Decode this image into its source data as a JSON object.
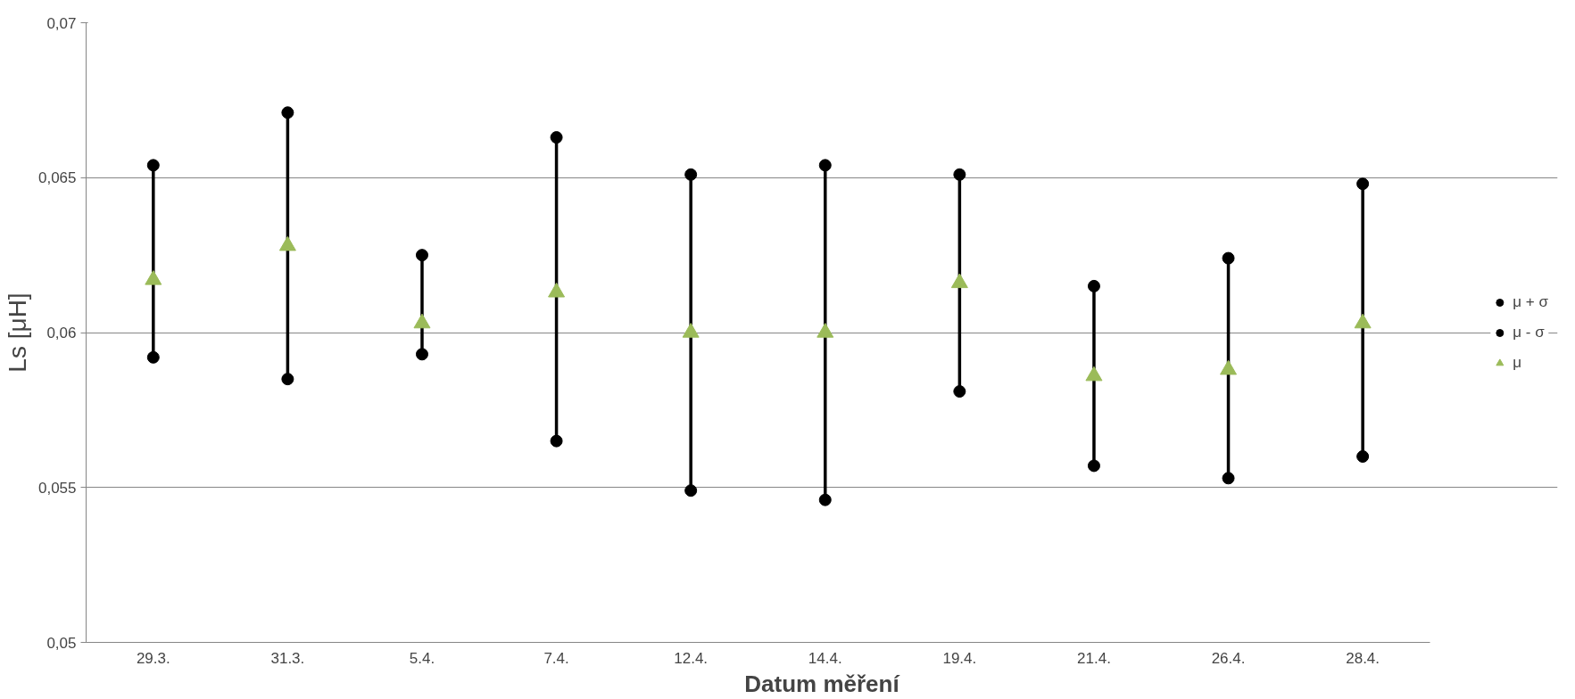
{
  "chart_data": {
    "type": "scatter",
    "xlabel": "Datum měření",
    "ylabel": "Ls [μH]",
    "categories": [
      "29.3.",
      "31.3.",
      "5.4.",
      "7.4.",
      "12.4.",
      "14.4.",
      "19.4.",
      "21.4.",
      "26.4.",
      "28.4."
    ],
    "series": [
      {
        "name": "μ + σ",
        "color": "#000000",
        "marker": "circle",
        "values": [
          0.0654,
          0.0671,
          0.0625,
          0.0663,
          0.0651,
          0.0654,
          0.0651,
          0.0615,
          0.0624,
          0.0648
        ]
      },
      {
        "name": "μ - σ",
        "color": "#000000",
        "marker": "circle",
        "values": [
          0.0592,
          0.0585,
          0.0593,
          0.0565,
          0.0549,
          0.0546,
          0.0581,
          0.0557,
          0.0553,
          0.056
        ]
      },
      {
        "name": "μ",
        "color": "#9bbb59",
        "marker": "triangle",
        "values": [
          0.0617,
          0.0628,
          0.0603,
          0.0613,
          0.06,
          0.06,
          0.0616,
          0.0586,
          0.0588,
          0.0603
        ]
      }
    ],
    "ylim": [
      0.05,
      0.07
    ],
    "yticks": [
      {
        "value": 0.05,
        "label": "0,05"
      },
      {
        "value": 0.055,
        "label": "0,055"
      },
      {
        "value": 0.06,
        "label": "0,06"
      },
      {
        "value": 0.065,
        "label": "0,065"
      },
      {
        "value": 0.07,
        "label": "0,07"
      }
    ],
    "grid": "y",
    "legend": "right"
  }
}
